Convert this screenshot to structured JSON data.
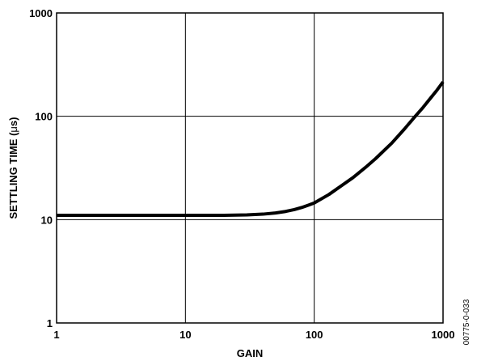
{
  "chart_data": {
    "type": "line",
    "title": "",
    "xlabel": "GAIN",
    "ylabel_main": "SETTLING TIME (",
    "ylabel_mu": "μ",
    "ylabel_rest": "s)",
    "x_scale": "log",
    "y_scale": "log",
    "xlim": [
      1,
      1000
    ],
    "ylim": [
      1,
      1000
    ],
    "x_ticks": [
      1,
      10,
      100,
      1000
    ],
    "x_tick_labels": [
      "1",
      "10",
      "100",
      "1000"
    ],
    "y_ticks": [
      1,
      10,
      100,
      1000
    ],
    "y_tick_labels": [
      "1",
      "10",
      "100",
      "1000"
    ],
    "grid": true,
    "series": [
      {
        "x": [
          1,
          2,
          5,
          10,
          20,
          30,
          40,
          50,
          60,
          70,
          80,
          90,
          100,
          130,
          160,
          200,
          250,
          300,
          400,
          500,
          600,
          700,
          800,
          900,
          1000
        ],
        "y": [
          11,
          11,
          11,
          11,
          11,
          11.1,
          11.3,
          11.6,
          12,
          12.5,
          13.1,
          13.8,
          14.5,
          17.5,
          21,
          25.5,
          32,
          39,
          55,
          75,
          98,
          122,
          150,
          180,
          215
        ],
        "color": "#000000"
      }
    ],
    "figure_id": "00775-0-033"
  }
}
